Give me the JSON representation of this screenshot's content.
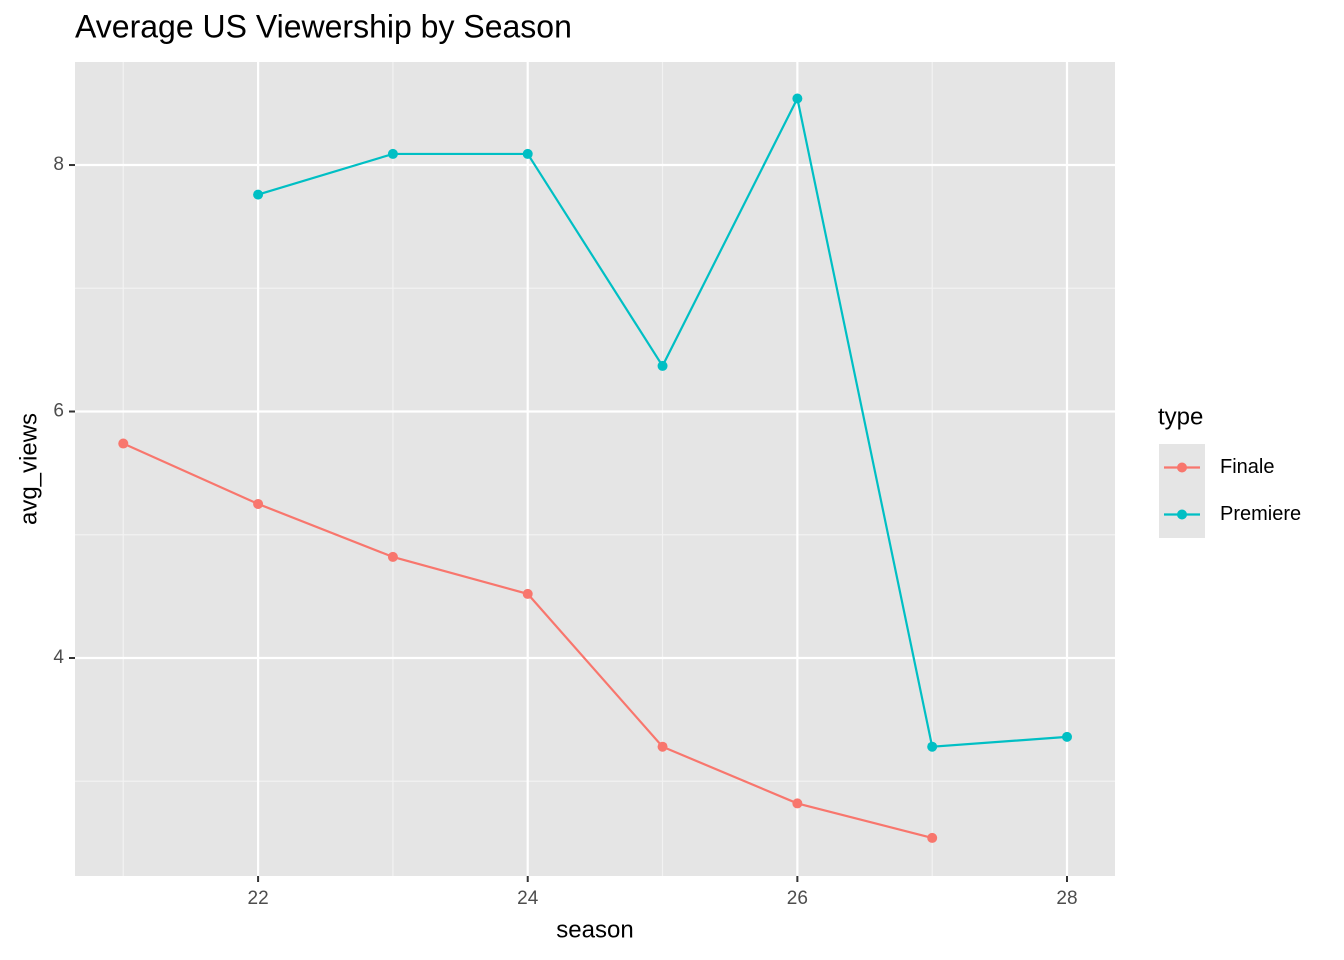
{
  "chart_data": {
    "type": "line",
    "title": "Average US Viewership by Season",
    "x_label": "season",
    "y_label": "avg_views",
    "x": [
      21,
      22,
      23,
      24,
      25,
      26,
      27,
      28
    ],
    "series": [
      {
        "name": "Finale",
        "color": "#F8766D",
        "values": [
          5.74,
          5.25,
          4.82,
          4.52,
          3.28,
          2.82,
          2.54,
          null
        ]
      },
      {
        "name": "Premiere",
        "color": "#00BFC4",
        "values": [
          null,
          7.76,
          8.09,
          8.09,
          6.37,
          8.54,
          3.28,
          3.36
        ]
      }
    ],
    "xlim": [
      20.642,
      28.356
    ],
    "ylim": [
      2.231,
      8.836
    ],
    "xticks": [
      22,
      24,
      26,
      28
    ],
    "yticks": [
      4,
      6,
      8
    ],
    "grid": true,
    "minor_grid": true,
    "legend_title": "type",
    "legend_position": "right"
  }
}
